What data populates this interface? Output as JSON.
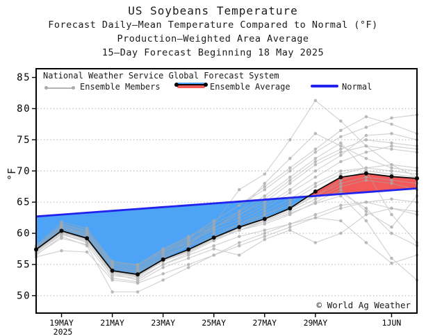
{
  "header": {
    "title": "US Soybeans Temperature",
    "subtitle1": "Forecast Daily—Mean Temperature Compared to Normal (°F)",
    "subtitle2": "Production—Weighted Area Average",
    "subtitle3": "15—Day Forecast Beginning 18 May 2025"
  },
  "legend": {
    "source": "National Weather Service Global Forecast System",
    "members_label": "Ensemble Members",
    "average_label": "Ensemble Average",
    "normal_label": "Normal"
  },
  "watermark": "© World Ag Weather",
  "chart_data": {
    "type": "line",
    "title": "US Soybeans Temperature",
    "xlabel": "",
    "ylabel": "°F",
    "ylim": [
      47.2,
      86.4
    ],
    "grid": "dotted horizontal",
    "legend_position": "top inside",
    "x_dates": [
      "18MAY",
      "19MAY",
      "20MAY",
      "21MAY",
      "22MAY",
      "23MAY",
      "24MAY",
      "25MAY",
      "26MAY",
      "27MAY",
      "28MAY",
      "29MAY",
      "30MAY",
      "31MAY",
      "1JUN",
      "2JUN"
    ],
    "x_tick_labels": [
      "19MAY",
      "21MAY",
      "23MAY",
      "25MAY",
      "27MAY",
      "29MAY",
      "1JUN"
    ],
    "x_tick_days": [
      1,
      3,
      5,
      7,
      9,
      11,
      14
    ],
    "x_year_label": "2025",
    "y_ticks": [
      50,
      55,
      60,
      65,
      70,
      75,
      80,
      85
    ],
    "series": {
      "ensemble_average": [
        57.4,
        60.4,
        59.2,
        54.0,
        53.4,
        55.8,
        57.4,
        59.3,
        61.0,
        62.3,
        64.0,
        66.7,
        69.0,
        69.6,
        69.1,
        68.8
      ],
      "normal": [
        62.7,
        63.0,
        63.3,
        63.6,
        63.9,
        64.2,
        64.5,
        64.8,
        65.1,
        65.4,
        65.7,
        66.0,
        66.3,
        66.6,
        66.9,
        67.2
      ],
      "ensemble_members": [
        [
          57.8,
          61.0,
          59.8,
          54.5,
          54.0,
          56.5,
          58.5,
          61.0,
          63.0,
          65.0,
          68.0,
          71.0,
          73.0,
          74.0,
          73.5,
          73.0
        ],
        [
          57.0,
          60.0,
          58.5,
          53.5,
          53.0,
          56.0,
          58.0,
          61.5,
          67.0,
          69.5,
          75.0,
          81.3,
          78.0,
          74.0,
          71.0,
          69.0
        ],
        [
          57.5,
          61.5,
          60.5,
          55.0,
          54.5,
          57.0,
          59.0,
          62.0,
          64.5,
          67.5,
          70.5,
          73.5,
          76.5,
          78.7,
          77.5,
          76.0
        ],
        [
          58.0,
          61.8,
          60.8,
          55.5,
          55.0,
          57.5,
          59.5,
          61.0,
          62.5,
          64.5,
          67.0,
          70.0,
          72.5,
          75.7,
          76.0,
          75.0
        ],
        [
          56.2,
          57.2,
          57.0,
          52.5,
          52.0,
          53.5,
          55.0,
          56.5,
          58.0,
          59.5,
          61.0,
          62.5,
          64.0,
          65.0,
          65.5,
          65.0
        ],
        [
          56.5,
          59.5,
          58.0,
          50.6,
          50.6,
          52.5,
          54.5,
          56.5,
          58.5,
          60.0,
          61.5,
          63.0,
          64.5,
          65.0,
          64.0,
          63.5
        ],
        [
          57.0,
          60.0,
          59.0,
          53.5,
          52.5,
          55.0,
          56.5,
          58.0,
          59.5,
          60.5,
          61.5,
          62.5,
          62.0,
          58.5,
          55.2,
          56.5
        ],
        [
          57.8,
          60.8,
          59.6,
          54.5,
          53.8,
          56.2,
          58.0,
          60.0,
          61.5,
          63.0,
          64.5,
          66.0,
          66.5,
          64.0,
          60.0,
          58.0
        ],
        [
          57.2,
          60.2,
          59.0,
          54.0,
          53.4,
          55.8,
          57.4,
          59.5,
          61.5,
          63.5,
          65.5,
          68.0,
          70.0,
          70.5,
          70.0,
          69.5
        ],
        [
          56.8,
          59.8,
          58.6,
          53.2,
          52.8,
          55.0,
          56.8,
          58.8,
          60.5,
          62.0,
          63.5,
          65.5,
          67.5,
          68.5,
          68.0,
          67.0
        ],
        [
          57.6,
          60.6,
          59.4,
          54.2,
          53.6,
          56.0,
          58.2,
          60.8,
          63.5,
          68.0,
          72.0,
          76.0,
          74.0,
          72.0,
          70.5,
          70.0
        ],
        [
          57.4,
          60.4,
          59.2,
          54.0,
          53.0,
          55.5,
          57.0,
          59.0,
          61.0,
          63.0,
          65.0,
          67.5,
          69.5,
          70.5,
          71.0,
          70.5
        ],
        [
          57.0,
          60.5,
          59.5,
          54.5,
          54.0,
          56.5,
          58.0,
          59.5,
          60.5,
          61.5,
          63.0,
          65.0,
          67.0,
          63.5,
          61.0,
          66.0
        ],
        [
          57.5,
          61.0,
          60.0,
          55.0,
          54.5,
          57.0,
          58.5,
          60.5,
          62.0,
          64.0,
          66.5,
          69.0,
          71.5,
          73.0,
          74.0,
          73.5
        ],
        [
          57.2,
          59.8,
          58.8,
          53.8,
          53.2,
          55.5,
          57.2,
          59.0,
          61.0,
          62.5,
          64.0,
          66.0,
          68.5,
          70.0,
          69.5,
          69.0
        ],
        [
          57.8,
          61.2,
          60.2,
          55.2,
          54.8,
          57.2,
          59.2,
          61.5,
          63.5,
          66.0,
          69.0,
          72.0,
          74.5,
          70.0,
          63.0,
          58.5
        ],
        [
          56.6,
          59.2,
          58.2,
          52.8,
          52.2,
          54.5,
          56.0,
          57.5,
          56.5,
          59.0,
          60.5,
          58.5,
          60.0,
          63.0,
          64.0,
          63.0
        ],
        [
          57.3,
          60.3,
          59.1,
          53.9,
          53.3,
          55.7,
          57.3,
          59.2,
          60.8,
          62.0,
          63.8,
          66.0,
          68.0,
          69.0,
          68.5,
          68.0
        ],
        [
          57.1,
          60.1,
          58.9,
          53.7,
          53.1,
          55.5,
          57.1,
          59.0,
          60.5,
          61.8,
          63.2,
          64.8,
          66.0,
          62.0,
          56.0,
          52.5
        ],
        [
          57.9,
          61.4,
          60.4,
          55.4,
          54.9,
          57.4,
          59.4,
          62.0,
          64.5,
          67.0,
          70.0,
          73.0,
          75.5,
          77.0,
          78.5,
          79.0
        ],
        [
          57.0,
          60.8,
          59.8,
          54.8,
          54.2,
          56.8,
          58.8,
          61.0,
          63.0,
          65.5,
          68.5,
          71.5,
          73.5,
          75.0,
          74.5,
          74.0
        ]
      ]
    },
    "colors": {
      "below_normal_fill": "#4da3f5",
      "above_normal_fill": "#f25a5a",
      "normal_line": "#2222ef",
      "average_line": "#0a0a0a",
      "member_line": "#a9a9a9",
      "grid": "#b0b0b0",
      "frame": "#000000"
    }
  }
}
